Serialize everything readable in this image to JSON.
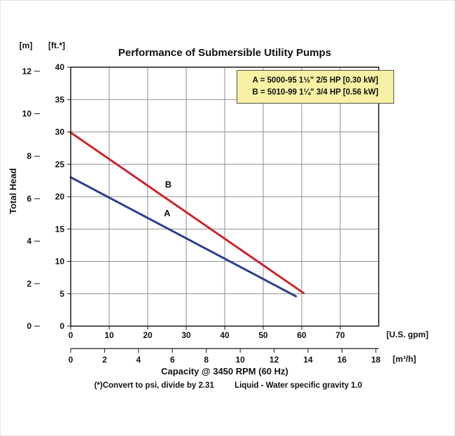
{
  "chart_data": {
    "type": "line",
    "title": "Performance of Submersible Utility Pumps",
    "xlabel": "Capacity @ 3450 RPM (60 Hz)",
    "ylabel": "Total Head",
    "footnote_left": "(*)Convert to psi, divide by 2.31",
    "footnote_right": "Liquid - Water specific gravity 1.0",
    "axes": {
      "gpm": {
        "unit": "[U.S. gpm]",
        "ticks": [
          0,
          10,
          20,
          30,
          40,
          50,
          60,
          70
        ],
        "max": 80
      },
      "m3h": {
        "unit": "[m³/h]",
        "ticks": [
          0,
          2,
          4,
          6,
          8,
          10,
          12,
          14,
          16,
          18
        ]
      },
      "ft": {
        "unit": "[ft.*]",
        "ticks": [
          0,
          5,
          10,
          15,
          20,
          25,
          30,
          35,
          40
        ],
        "max": 40
      },
      "m": {
        "unit": "[m]",
        "ticks": [
          0,
          2,
          4,
          6,
          8,
          10,
          12
        ]
      }
    },
    "grid": {
      "x_step_gpm": 10,
      "y_step_ft": 5,
      "color": "#8f8f8f"
    },
    "series": [
      {
        "name": "B",
        "color": "#c9252b",
        "points_gpm_ft": [
          [
            0,
            29.9
          ],
          [
            60.5,
            5.1
          ]
        ],
        "label_at": [
          24.5,
          21.4
        ]
      },
      {
        "name": "A",
        "color": "#2e3d91",
        "points_gpm_ft": [
          [
            0,
            23.0
          ],
          [
            58.5,
            4.6
          ]
        ],
        "label_at": [
          24.2,
          17.0
        ]
      }
    ],
    "legend": {
      "bg": "#f6f1a4",
      "border": "#55554a",
      "lines": [
        "A = 5000-95 1½\" 2/5 HP [0.30 kW]",
        "B = 5010-99 1¼\" 3/4 HP [0.56 kW]"
      ]
    },
    "conversions": {
      "ft_per_m": 3.2808,
      "gpm_per_m3h": 4.4029
    }
  }
}
